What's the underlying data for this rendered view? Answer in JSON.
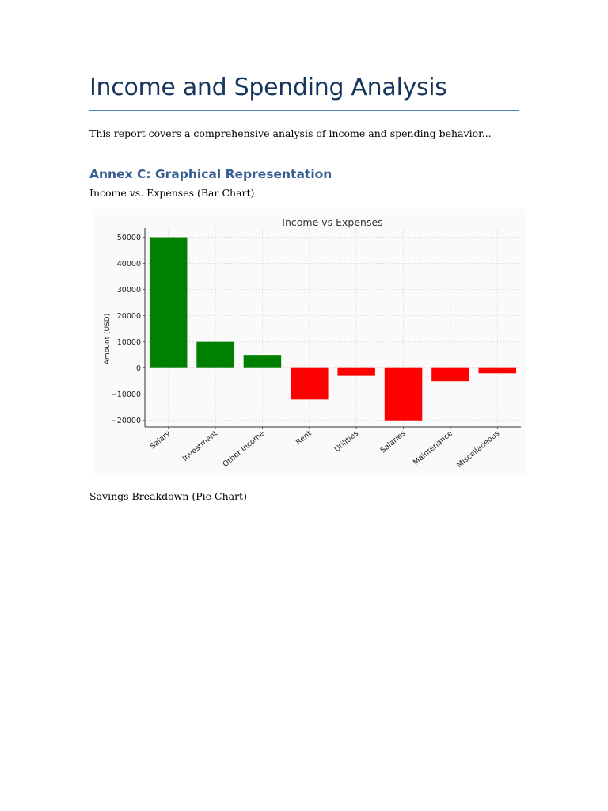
{
  "document": {
    "title": "Income and Spending Analysis",
    "intro": "This report covers a comprehensive analysis of income and spending behavior...",
    "annex_heading": "Annex C: Graphical Representation",
    "caption_bar": "Income vs. Expenses (Bar Chart)",
    "caption_pie": "Savings Breakdown (Pie Chart)"
  },
  "colors": {
    "title": "#17365d",
    "heading": "#365f91",
    "income": "#008000",
    "expense": "#ff0000"
  },
  "chart_data": {
    "type": "bar",
    "title": "Income vs Expenses",
    "xlabel": "",
    "ylabel": "Amount (USD)",
    "categories": [
      "Salary",
      "Investment",
      "Other Income",
      "Rent",
      "Utilities",
      "Salaries",
      "Maintenance",
      "Miscellaneous"
    ],
    "values": [
      50000,
      10000,
      5000,
      -12000,
      -3000,
      -20000,
      -5000,
      -2000
    ],
    "bar_colors": [
      "#008000",
      "#008000",
      "#008000",
      "#ff0000",
      "#ff0000",
      "#ff0000",
      "#ff0000",
      "#ff0000"
    ],
    "yticks": [
      50000,
      40000,
      30000,
      20000,
      10000,
      0,
      -10000,
      -20000
    ],
    "ytick_labels": [
      "50000",
      "40000",
      "30000",
      "20000",
      "10000",
      "0",
      "−10000",
      "−20000"
    ],
    "ylim": [
      -22500,
      53500
    ],
    "grid": true
  }
}
